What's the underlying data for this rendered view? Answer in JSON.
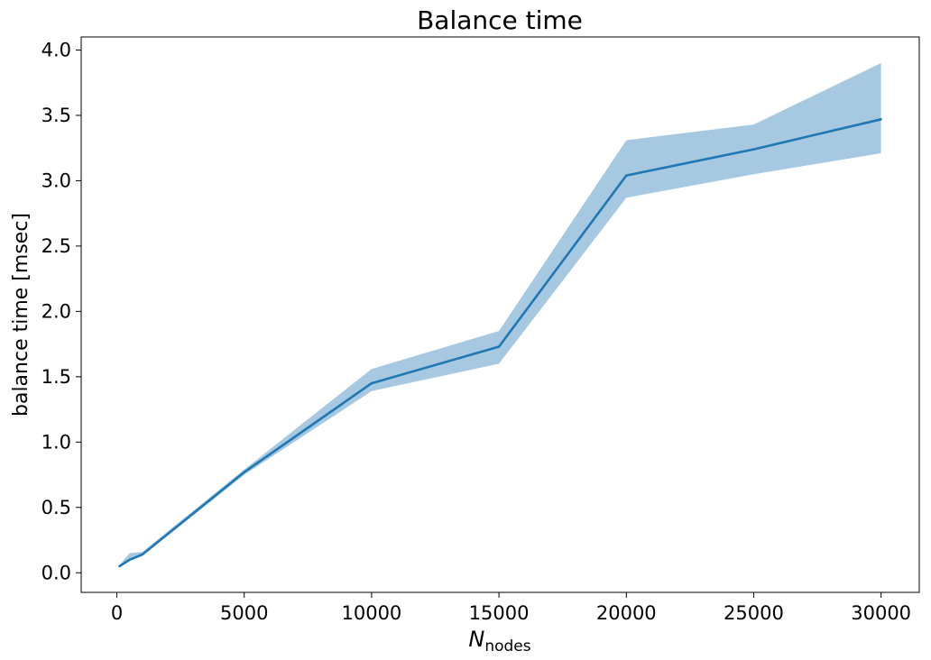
{
  "chart_data": {
    "type": "line",
    "title": "Balance time",
    "xlabel_main": "N",
    "xlabel_sub": "nodes",
    "ylabel": "balance time [msec]",
    "xlim": [
      -1400,
      31500
    ],
    "ylim": [
      -0.15,
      4.1
    ],
    "xticks": [
      0,
      5000,
      10000,
      15000,
      20000,
      25000,
      30000
    ],
    "xtick_labels": [
      "0",
      "5000",
      "10000",
      "15000",
      "20000",
      "25000",
      "30000"
    ],
    "yticks": [
      0.0,
      0.5,
      1.0,
      1.5,
      2.0,
      2.5,
      3.0,
      3.5,
      4.0
    ],
    "ytick_labels": [
      "0.0",
      "0.5",
      "1.0",
      "1.5",
      "2.0",
      "2.5",
      "3.0",
      "3.5",
      "4.0"
    ],
    "grid": false,
    "series": [
      {
        "color": "#1f77b4",
        "band_color": "#a6c8e0",
        "x": [
          100,
          500,
          1000,
          5000,
          10000,
          15000,
          20000,
          25000,
          30000
        ],
        "values": [
          0.05,
          0.1,
          0.14,
          0.77,
          1.45,
          1.73,
          3.04,
          3.24,
          3.47
        ],
        "lower": [
          0.05,
          0.09,
          0.13,
          0.75,
          1.39,
          1.6,
          2.87,
          3.05,
          3.21
        ],
        "upper": [
          0.06,
          0.15,
          0.16,
          0.79,
          1.56,
          1.85,
          3.31,
          3.43,
          3.9
        ]
      }
    ]
  }
}
